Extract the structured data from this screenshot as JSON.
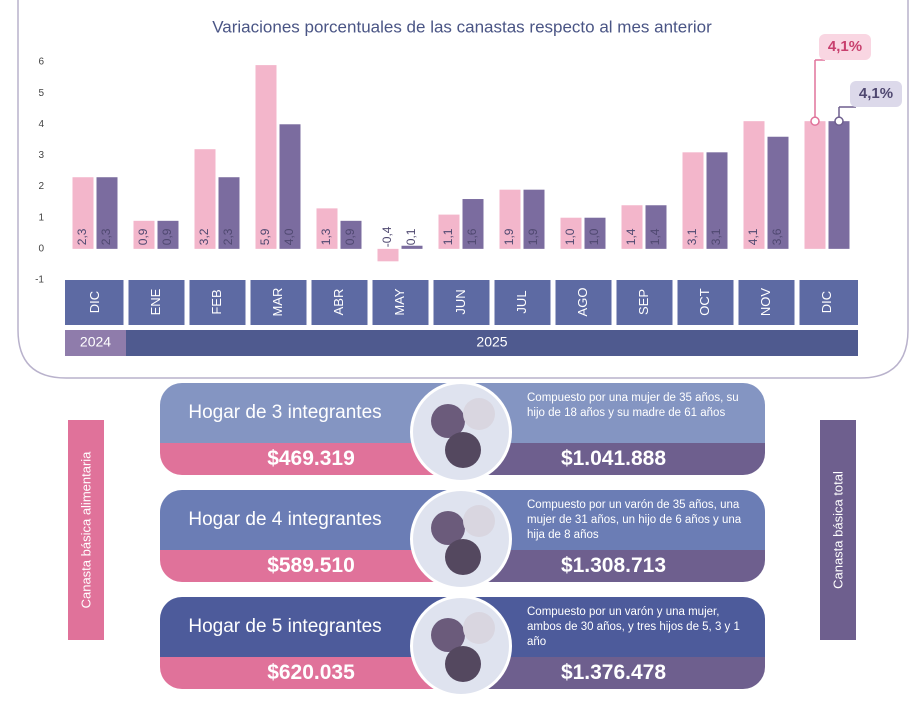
{
  "chart_data": {
    "type": "bar",
    "title": "Variaciones porcentuales de las canastas respecto al mes anterior",
    "categories": [
      "DIC",
      "ENE",
      "FEB",
      "MAR",
      "ABR",
      "MAY",
      "JUN",
      "JUL",
      "AGO",
      "SEP",
      "OCT",
      "NOV",
      "DIC"
    ],
    "year_labels": [
      "2024",
      "2025"
    ],
    "series": [
      {
        "name": "Canasta básica alimentaria",
        "color": "#f3b6cb",
        "values": [
          2.3,
          0.9,
          3.2,
          5.9,
          1.3,
          -0.4,
          1.1,
          1.9,
          1.0,
          1.4,
          3.1,
          4.1,
          4.1
        ],
        "value_labels": [
          "2,3",
          "0,9",
          "3,2",
          "5,9",
          "1,3",
          "-0,4",
          "1,1",
          "1,9",
          "1,0",
          "1,4",
          "3,1",
          "4,1",
          "4,1%"
        ]
      },
      {
        "name": "Canasta básica total",
        "color": "#7b6c9f",
        "values": [
          2.3,
          0.9,
          2.3,
          4.0,
          0.9,
          0.1,
          1.6,
          1.9,
          1.0,
          1.4,
          3.1,
          3.6,
          4.1
        ],
        "value_labels": [
          "2,3",
          "0,9",
          "2,3",
          "4,0",
          "0,9",
          "0,1",
          "1,6",
          "1,9",
          "1,0",
          "1,4",
          "3,1",
          "3,6",
          "4,1%"
        ]
      }
    ],
    "ylim": [
      -1,
      6
    ],
    "yticks": [
      -1,
      0,
      1,
      2,
      3,
      4,
      5,
      6
    ],
    "grid": false
  },
  "households": [
    {
      "title": "Hogar de 3 integrantes",
      "description": "Compuesto por una mujer de 35 años, su hijo de 18 años y su madre de 61 años",
      "food_basket": "$469.319",
      "total_basket": "$1.041.888"
    },
    {
      "title": "Hogar de 4 integrantes",
      "description": "Compuesto por un varón de 35 años, una mujer de 31 años, un hijo de 6 años y una hija de 8 años",
      "food_basket": "$589.510",
      "total_basket": "$1.308.713"
    },
    {
      "title": "Hogar de 5 integrantes",
      "description": "Compuesto por un varón y una mujer, ambos de 30 años, y tres hijos de 5, 3 y 1 año",
      "food_basket": "$620.035",
      "total_basket": "$1.376.478"
    }
  ]
}
